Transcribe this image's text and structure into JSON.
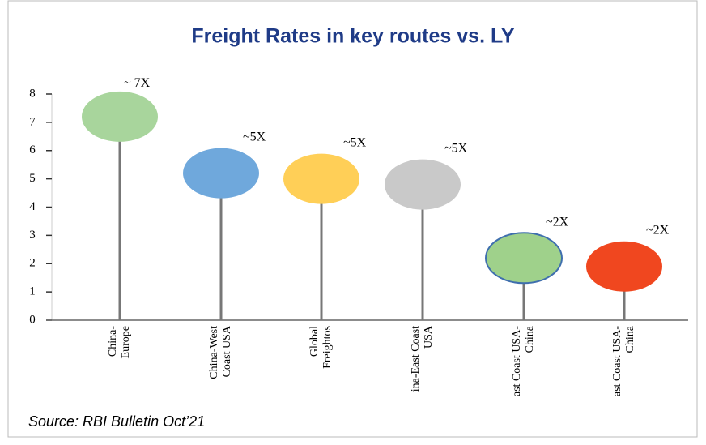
{
  "chart_data": {
    "type": "lollipop",
    "title": "Freight Rates in key routes vs. LY",
    "categories": [
      [
        "China-",
        "Europe"
      ],
      [
        "China-West",
        "Coast USA"
      ],
      [
        "Global",
        "Freightos"
      ],
      [
        "ina-East Coast",
        "USA"
      ],
      [
        "ast Coast USA-",
        "China"
      ],
      [
        "ast Coast USA-",
        "China"
      ]
    ],
    "values": [
      7.2,
      5.2,
      5.0,
      4.8,
      2.2,
      1.9
    ],
    "colors": [
      "#a8d59c",
      "#6fa8dc",
      "#ffcf57",
      "#c9c9c9",
      "#9fd18b",
      "#f0471f"
    ],
    "annotations": [
      "~ 7X",
      "~5X",
      "~5X",
      "~5X",
      "~2X",
      "~2X"
    ],
    "ylim": [
      0,
      8
    ],
    "yticks": [
      0,
      1,
      2,
      3,
      4,
      5,
      6,
      7,
      8
    ],
    "source": "Source: RBI Bulletin Oct’21"
  }
}
